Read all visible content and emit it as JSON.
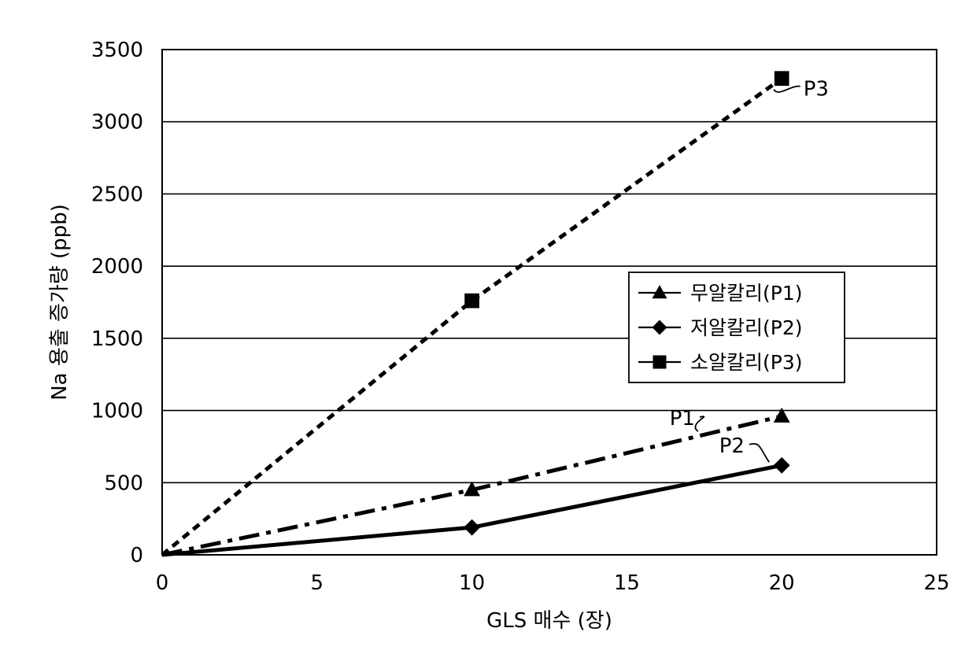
{
  "chart_data": {
    "type": "line",
    "title": "",
    "xlabel": "GLS 매수 (장)",
    "ylabel": "Na 용출 증가량 (ppb)",
    "xlim": [
      0,
      25
    ],
    "ylim": [
      0,
      3500
    ],
    "xticks": [
      0,
      5,
      10,
      15,
      20,
      25
    ],
    "yticks": [
      0,
      500,
      1000,
      1500,
      2000,
      2500,
      3000,
      3500
    ],
    "grid": "horizontal",
    "legend_position": "center-right",
    "series": [
      {
        "name": "무알칼리(P1)",
        "marker": "triangle",
        "line_style": "dash-dot",
        "x": [
          0,
          10,
          20
        ],
        "y": [
          0,
          450,
          960
        ]
      },
      {
        "name": "저알칼리(P2)",
        "marker": "diamond",
        "line_style": "solid",
        "x": [
          0,
          10,
          20
        ],
        "y": [
          0,
          190,
          620
        ]
      },
      {
        "name": "소알칼리(P3)",
        "marker": "square",
        "line_style": "dotted",
        "x": [
          0,
          10,
          20
        ],
        "y": [
          0,
          1760,
          3300
        ]
      }
    ],
    "legend_entries": [
      {
        "label": "무알칼리(P1)",
        "marker": "triangle"
      },
      {
        "label": "저알칼리(P2)",
        "marker": "diamond"
      },
      {
        "label": "소알칼리(P3)",
        "marker": "square"
      }
    ],
    "annotations": [
      {
        "text": "P1",
        "x": 17.2,
        "y": 900
      },
      {
        "text": "P2",
        "x": 18.8,
        "y": 710
      },
      {
        "text": "P3",
        "x": 20.7,
        "y": 3180
      }
    ]
  }
}
